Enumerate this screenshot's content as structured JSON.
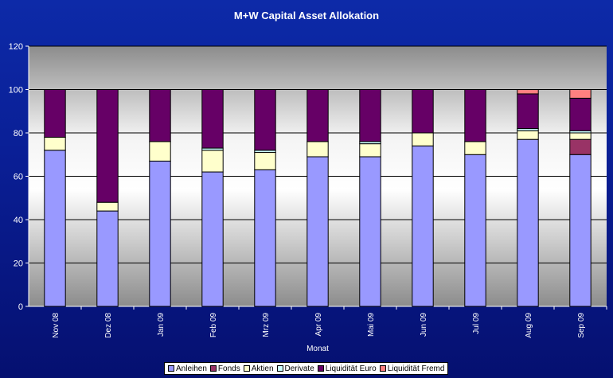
{
  "chart_data": {
    "type": "bar",
    "stacked": true,
    "title": "M+W Capital Asset Allokation",
    "xlabel": "Monat",
    "ylabel": "",
    "ylim": [
      0,
      120
    ],
    "yticks": [
      0,
      20,
      40,
      60,
      80,
      100,
      120
    ],
    "grid": true,
    "legend_position": "bottom",
    "categories": [
      "Nov 08",
      "Dez 08",
      "Jan 09",
      "Feb 09",
      "Mrz 09",
      "Apr 09",
      "Mai 09",
      "Jun 09",
      "Jul 09",
      "Aug 09",
      "Sep 09"
    ],
    "series": [
      {
        "name": "Anleihen",
        "color": "#9999ff",
        "values": [
          72,
          44,
          67,
          62,
          63,
          69,
          69,
          74,
          70,
          77,
          70
        ]
      },
      {
        "name": "Fonds",
        "color": "#993366",
        "values": [
          0,
          0,
          0,
          0,
          0,
          0,
          0,
          0,
          0,
          0,
          7
        ]
      },
      {
        "name": "Aktien",
        "color": "#ffffcc",
        "values": [
          6,
          4,
          9,
          10,
          8,
          7,
          6,
          6,
          6,
          4,
          3
        ]
      },
      {
        "name": "Derivate",
        "color": "#ccffff",
        "values": [
          0,
          0,
          0,
          1,
          1,
          0,
          1,
          0,
          0,
          1,
          1
        ]
      },
      {
        "name": "Liquidität Euro",
        "color": "#660066",
        "values": [
          22,
          52,
          24,
          27,
          28,
          24,
          24,
          20,
          24,
          16,
          15
        ]
      },
      {
        "name": "Liquidität Fremd",
        "color": "#ff8080",
        "values": [
          0,
          0,
          0,
          0,
          0,
          0,
          0,
          0,
          0,
          2,
          4
        ]
      }
    ]
  }
}
